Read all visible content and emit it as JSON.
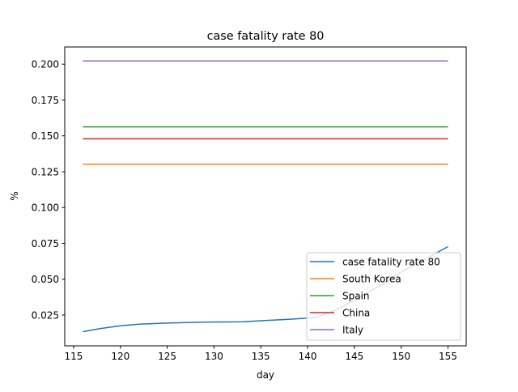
{
  "chart_data": {
    "type": "line",
    "title": "case fatality rate 80",
    "xlabel": "day",
    "ylabel": "%",
    "xlim": [
      114.05,
      156.95
    ],
    "ylim": [
      0.0035,
      0.212
    ],
    "xticks": [
      115,
      120,
      125,
      130,
      135,
      140,
      145,
      150,
      155
    ],
    "xtick_labels": [
      "115",
      "120",
      "125",
      "130",
      "135",
      "140",
      "145",
      "150",
      "155"
    ],
    "yticks": [
      0.025,
      0.05,
      0.075,
      0.1,
      0.125,
      0.15,
      0.175,
      0.2
    ],
    "ytick_labels": [
      "0.025",
      "0.050",
      "0.075",
      "0.100",
      "0.125",
      "0.150",
      "0.175",
      "0.200"
    ],
    "grid": false,
    "legend_position": "lower right",
    "series": [
      {
        "name": "case fatality rate 80",
        "color": "#1f77b4",
        "x": [
          116,
          118,
          120,
          122,
          125,
          128,
          130,
          133,
          135,
          138,
          140,
          141,
          143,
          145,
          148,
          150,
          152,
          155
        ],
        "y": [
          0.0134,
          0.0157,
          0.0175,
          0.0186,
          0.0194,
          0.0199,
          0.0201,
          0.0202,
          0.021,
          0.022,
          0.0228,
          0.0235,
          0.0285,
          0.0353,
          0.0465,
          0.0549,
          0.062,
          0.0727
        ]
      },
      {
        "name": "South Korea",
        "color": "#ff7f0e",
        "x": [
          116,
          155
        ],
        "y": [
          0.1302,
          0.1302
        ]
      },
      {
        "name": "Spain",
        "color": "#2ca02c",
        "x": [
          116,
          155
        ],
        "y": [
          0.1563,
          0.1563
        ]
      },
      {
        "name": "China",
        "color": "#d62728",
        "x": [
          116,
          155
        ],
        "y": [
          0.1479,
          0.1479
        ]
      },
      {
        "name": "Italy",
        "color": "#9467bd",
        "x": [
          116,
          155
        ],
        "y": [
          0.2022,
          0.2022
        ]
      }
    ]
  }
}
